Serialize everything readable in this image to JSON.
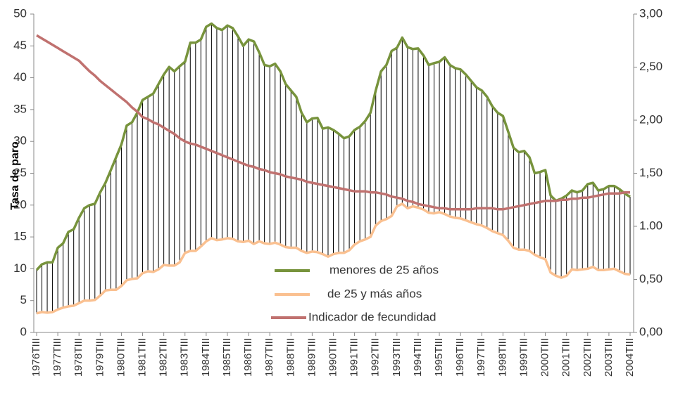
{
  "chart_data": {
    "type": "line",
    "y_label": "Tasa de paro",
    "categories": [
      "1976TIII",
      null,
      null,
      null,
      "1977TIII",
      null,
      null,
      null,
      "1978TIII",
      null,
      null,
      null,
      "1979TIII",
      null,
      null,
      null,
      "1980TIII",
      null,
      null,
      null,
      "1981TIII",
      null,
      null,
      null,
      "1982TIII",
      null,
      null,
      null,
      "1983TIII",
      null,
      null,
      null,
      "1984TIII",
      null,
      null,
      null,
      "1985TIII",
      null,
      null,
      null,
      "1986TIII",
      null,
      null,
      null,
      "1987TIII",
      null,
      null,
      null,
      "1988TIII",
      null,
      null,
      null,
      "1989TIII",
      null,
      null,
      null,
      "1990TIII",
      null,
      null,
      null,
      "1991TIII",
      null,
      null,
      null,
      "1992TIII",
      null,
      null,
      null,
      "1993TIII",
      null,
      null,
      null,
      "1994TIII",
      null,
      null,
      null,
      "1995TIII",
      null,
      null,
      null,
      "1996TIII",
      null,
      null,
      null,
      "1997TIII",
      null,
      null,
      null,
      "1998TIII",
      null,
      null,
      null,
      "1999TIII",
      null,
      null,
      null,
      "2000TIII",
      null,
      null,
      null,
      "2001TIII",
      null,
      null,
      null,
      "2002TIII",
      null,
      null,
      null,
      "2003TIII",
      null,
      null,
      null,
      "2004TIII"
    ],
    "series": [
      {
        "name": "menores de 25 años",
        "color": "#77933c",
        "values": [
          9.8,
          10.7,
          11.0,
          11.0,
          13.3,
          14,
          15.8,
          16.2,
          18,
          19.5,
          20,
          20.2,
          22,
          23.5,
          25.5,
          27.5,
          29.5,
          32.5,
          33,
          34.5,
          36.5,
          37,
          37.5,
          39,
          40.5,
          41.7,
          41,
          41.8,
          42.5,
          45.5,
          45.5,
          46,
          48,
          48.5,
          47.8,
          47.5,
          48.2,
          47.8,
          46.5,
          45,
          46,
          45.7,
          44,
          42,
          41.8,
          42.2,
          41,
          39,
          38,
          37,
          34.5,
          33,
          33.6,
          33.7,
          32,
          32.2,
          31.8,
          31.2,
          30.5,
          30.8,
          31.8,
          32.3,
          33.2,
          34.5,
          38,
          41,
          42,
          44.2,
          44.7,
          46.3,
          44.8,
          44.5,
          44.6,
          43.5,
          42,
          42.3,
          42.5,
          43.2,
          42,
          41.5,
          41.3,
          40.5,
          39.5,
          38.5,
          38,
          37,
          35.5,
          34.5,
          34,
          31.5,
          29,
          28.3,
          28.5,
          27.5,
          25,
          25.2,
          25.5,
          21.5,
          20.7,
          21,
          21.5,
          22.3,
          22,
          22.3,
          23.3,
          23.5,
          22.3,
          22.5,
          23,
          23,
          22.5,
          21.8,
          21.3
        ]
      },
      {
        "name": "de 25 y más años",
        "color": "#fac090",
        "values": [
          3,
          3.2,
          3.1,
          3.2,
          3.6,
          3.9,
          4.1,
          4.2,
          4.6,
          5,
          5,
          5.1,
          5.8,
          6.6,
          6.7,
          6.7,
          7.3,
          8.2,
          8.4,
          8.5,
          9.3,
          9.6,
          9.5,
          9.9,
          10.6,
          10.5,
          10.5,
          11,
          12.5,
          12.8,
          12.8,
          13.5,
          14.3,
          14.8,
          14.5,
          14.6,
          14.8,
          14.7,
          14.3,
          14.2,
          14.4,
          13.9,
          14.3,
          14,
          13.9,
          14.1,
          13.8,
          13.4,
          13.3,
          13.3,
          12.8,
          12.5,
          12.7,
          12.6,
          12.3,
          11.9,
          12.3,
          12.5,
          12.5,
          12.9,
          13.8,
          14.3,
          14.6,
          15,
          16.8,
          17.5,
          17.8,
          18.3,
          19.8,
          20.2,
          19.5,
          19.8,
          19.6,
          19.3,
          18.8,
          18.7,
          18.9,
          18.6,
          18.2,
          18,
          17.9,
          17.6,
          17.3,
          17,
          16.8,
          16.4,
          15.9,
          15.6,
          15.3,
          14.4,
          13.3,
          13,
          13,
          12.8,
          12.2,
          11.8,
          11.5,
          9.4,
          8.9,
          8.6,
          8.9,
          9.9,
          9.8,
          9.9,
          10,
          10.3,
          9.8,
          9.8,
          9.9,
          10,
          9.6,
          9.2,
          9.1
        ]
      },
      {
        "name": "Indicador de fecundidad",
        "color": "#c0716f",
        "axis": "y2",
        "values": [
          2.8,
          2.77,
          2.74,
          2.71,
          2.68,
          2.65,
          2.62,
          2.59,
          2.56,
          2.51,
          2.46,
          2.42,
          2.37,
          2.33,
          2.29,
          2.25,
          2.21,
          2.17,
          2.12,
          2.08,
          2.03,
          2.01,
          1.98,
          1.96,
          1.93,
          1.9,
          1.87,
          1.83,
          1.8,
          1.78,
          1.77,
          1.75,
          1.73,
          1.71,
          1.69,
          1.67,
          1.65,
          1.63,
          1.61,
          1.59,
          1.57,
          1.56,
          1.54,
          1.53,
          1.51,
          1.5,
          1.49,
          1.47,
          1.46,
          1.45,
          1.44,
          1.42,
          1.41,
          1.4,
          1.39,
          1.38,
          1.37,
          1.36,
          1.35,
          1.34,
          1.33,
          1.33,
          1.33,
          1.32,
          1.32,
          1.31,
          1.3,
          1.28,
          1.27,
          1.26,
          1.24,
          1.23,
          1.21,
          1.2,
          1.19,
          1.18,
          1.17,
          1.17,
          1.16,
          1.16,
          1.16,
          1.16,
          1.16,
          1.17,
          1.17,
          1.17,
          1.17,
          1.16,
          1.16,
          1.17,
          1.18,
          1.19,
          1.2,
          1.21,
          1.22,
          1.23,
          1.24,
          1.24,
          1.24,
          1.25,
          1.25,
          1.26,
          1.26,
          1.27,
          1.27,
          1.28,
          1.29,
          1.3,
          1.31,
          1.31,
          1.31,
          1.32,
          1.32
        ]
      }
    ],
    "ylim": [
      0,
      50
    ],
    "yticks": [
      0,
      5,
      10,
      15,
      20,
      25,
      30,
      35,
      40,
      45,
      50
    ],
    "y2lim": [
      0,
      3
    ],
    "y2ticks": [
      {
        "value": 0,
        "label": "0,00"
      },
      {
        "value": 0.5,
        "label": "0,50"
      },
      {
        "value": 1,
        "label": "1.00"
      },
      {
        "value": 1.5,
        "label": "1,50"
      },
      {
        "value": 2,
        "label": "2,00"
      },
      {
        "value": 2.5,
        "label": "2,50"
      },
      {
        "value": 3,
        "label": "3,00"
      }
    ],
    "high_low_lines": true,
    "grid": false,
    "legend": "center"
  }
}
